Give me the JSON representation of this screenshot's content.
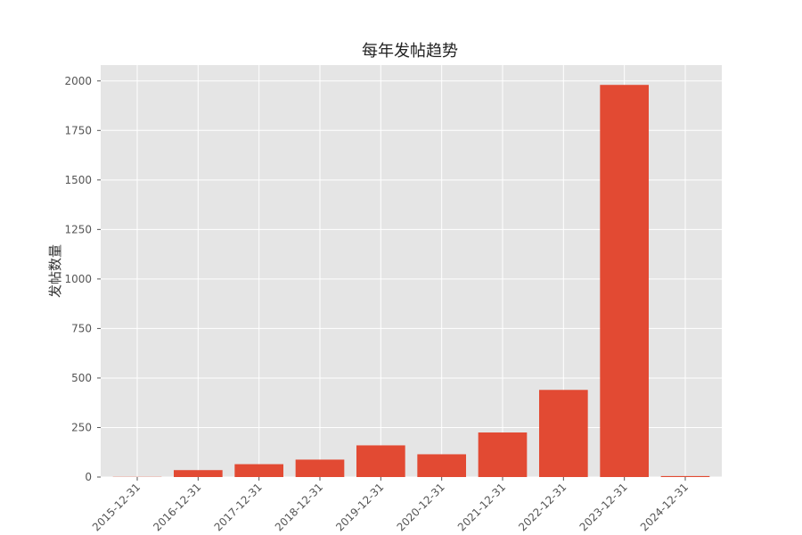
{
  "chart_data": {
    "type": "bar",
    "title": "每年发帖趋势",
    "xlabel": "",
    "ylabel": "发帖数量",
    "categories": [
      "2015-12-31",
      "2016-12-31",
      "2017-12-31",
      "2018-12-31",
      "2019-12-31",
      "2020-12-31",
      "2021-12-31",
      "2022-12-31",
      "2023-12-31",
      "2024-12-31"
    ],
    "values": [
      1,
      35,
      65,
      88,
      160,
      115,
      225,
      440,
      1980,
      5
    ],
    "ylim": [
      0,
      2080
    ],
    "yticks": [
      0,
      250,
      500,
      750,
      1000,
      1250,
      1500,
      1750,
      2000
    ],
    "grid": true,
    "colors": {
      "bar": "#E24A33",
      "plot_background": "#E5E5E5",
      "grid": "#FFFFFF"
    }
  }
}
